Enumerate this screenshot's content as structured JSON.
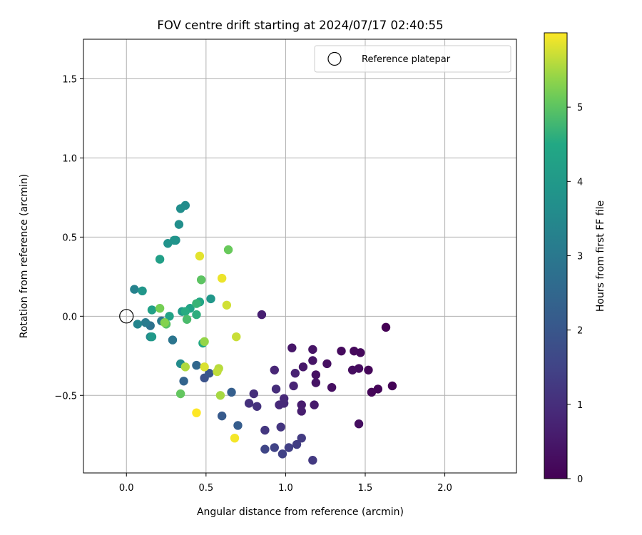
{
  "chart_data": {
    "type": "scatter",
    "title": "FOV centre drift starting at 2024/07/17 02:40:55",
    "xlabel": "Angular distance from reference (arcmin)",
    "ylabel": "Rotation from reference (arcmin)",
    "xlim": [
      -0.27,
      2.45
    ],
    "ylim": [
      -0.99,
      1.75
    ],
    "x_ticks": [
      0.0,
      0.5,
      1.0,
      1.5,
      2.0
    ],
    "x_tick_labels": [
      "0.0",
      "0.5",
      "1.0",
      "1.5",
      "2.0"
    ],
    "y_ticks": [
      -0.5,
      0.0,
      0.5,
      1.0,
      1.5
    ],
    "y_tick_labels": [
      "−0.5",
      "0.0",
      "0.5",
      "1.0",
      "1.5"
    ],
    "grid": true,
    "legend": {
      "placement": "upper right",
      "entries": [
        {
          "label": "Reference platepar",
          "marker": "open-circle",
          "color": "#000000"
        }
      ]
    },
    "reference_point": {
      "x": 0.0,
      "y": 0.0
    },
    "colorbar": {
      "label": "Hours from first FF file",
      "colormap": "viridis",
      "range": [
        0,
        6
      ],
      "ticks": [
        0,
        1,
        2,
        3,
        4,
        5
      ],
      "tick_labels": [
        "0",
        "1",
        "2",
        "3",
        "4",
        "5"
      ]
    },
    "points": [
      {
        "x": 1.63,
        "y": -0.07,
        "t": 0.0
      },
      {
        "x": 1.67,
        "y": -0.44,
        "t": 0.05
      },
      {
        "x": 1.58,
        "y": -0.46,
        "t": 0.08
      },
      {
        "x": 1.54,
        "y": -0.48,
        "t": 0.1
      },
      {
        "x": 1.52,
        "y": -0.34,
        "t": 0.12
      },
      {
        "x": 1.47,
        "y": -0.23,
        "t": 0.15
      },
      {
        "x": 1.43,
        "y": -0.22,
        "t": 0.17
      },
      {
        "x": 1.35,
        "y": -0.22,
        "t": 0.2
      },
      {
        "x": 1.46,
        "y": -0.33,
        "t": 0.22
      },
      {
        "x": 1.42,
        "y": -0.34,
        "t": 0.25
      },
      {
        "x": 1.46,
        "y": -0.68,
        "t": 0.28
      },
      {
        "x": 1.29,
        "y": -0.45,
        "t": 0.3
      },
      {
        "x": 1.26,
        "y": -0.3,
        "t": 0.32
      },
      {
        "x": 1.19,
        "y": -0.37,
        "t": 0.35
      },
      {
        "x": 1.19,
        "y": -0.42,
        "t": 0.38
      },
      {
        "x": 1.17,
        "y": -0.21,
        "t": 0.4
      },
      {
        "x": 1.17,
        "y": -0.28,
        "t": 0.42
      },
      {
        "x": 1.04,
        "y": -0.2,
        "t": 0.45
      },
      {
        "x": 1.11,
        "y": -0.32,
        "t": 0.5
      },
      {
        "x": 1.18,
        "y": -0.56,
        "t": 0.55
      },
      {
        "x": 1.1,
        "y": -0.56,
        "t": 0.58
      },
      {
        "x": 1.1,
        "y": -0.6,
        "t": 0.62
      },
      {
        "x": 0.85,
        "y": 0.01,
        "t": 0.65
      },
      {
        "x": 1.06,
        "y": -0.36,
        "t": 0.7
      },
      {
        "x": 1.05,
        "y": -0.44,
        "t": 0.75
      },
      {
        "x": 0.93,
        "y": -0.34,
        "t": 0.8
      },
      {
        "x": 0.99,
        "y": -0.52,
        "t": 0.85
      },
      {
        "x": 0.99,
        "y": -0.55,
        "t": 0.88
      },
      {
        "x": 0.96,
        "y": -0.56,
        "t": 0.9
      },
      {
        "x": 0.94,
        "y": -0.46,
        "t": 0.95
      },
      {
        "x": 0.8,
        "y": -0.49,
        "t": 1.0
      },
      {
        "x": 0.77,
        "y": -0.55,
        "t": 1.05
      },
      {
        "x": 0.82,
        "y": -0.57,
        "t": 1.1
      },
      {
        "x": 0.97,
        "y": -0.7,
        "t": 1.15
      },
      {
        "x": 0.87,
        "y": -0.72,
        "t": 1.2
      },
      {
        "x": 1.17,
        "y": -0.91,
        "t": 1.25
      },
      {
        "x": 1.1,
        "y": -0.77,
        "t": 1.3
      },
      {
        "x": 1.07,
        "y": -0.81,
        "t": 1.35
      },
      {
        "x": 1.02,
        "y": -0.83,
        "t": 1.4
      },
      {
        "x": 0.98,
        "y": -0.87,
        "t": 1.45
      },
      {
        "x": 0.93,
        "y": -0.83,
        "t": 1.5
      },
      {
        "x": 0.87,
        "y": -0.84,
        "t": 1.55
      },
      {
        "x": 0.49,
        "y": -0.39,
        "t": 1.9
      },
      {
        "x": 0.52,
        "y": -0.36,
        "t": 2.0
      },
      {
        "x": 0.6,
        "y": -0.63,
        "t": 2.1
      },
      {
        "x": 0.7,
        "y": -0.69,
        "t": 2.2
      },
      {
        "x": 0.66,
        "y": -0.48,
        "t": 2.25
      },
      {
        "x": 0.36,
        "y": -0.41,
        "t": 2.4
      },
      {
        "x": 0.44,
        "y": -0.31,
        "t": 2.5
      },
      {
        "x": 0.15,
        "y": -0.06,
        "t": 2.8
      },
      {
        "x": 0.29,
        "y": -0.15,
        "t": 2.9
      },
      {
        "x": 0.22,
        "y": -0.03,
        "t": 3.0
      },
      {
        "x": 0.12,
        "y": -0.04,
        "t": 3.1
      },
      {
        "x": 0.05,
        "y": 0.17,
        "t": 3.3
      },
      {
        "x": 0.07,
        "y": -0.05,
        "t": 3.4
      },
      {
        "x": 0.15,
        "y": -0.13,
        "t": 3.5
      },
      {
        "x": 0.34,
        "y": -0.3,
        "t": 3.6
      },
      {
        "x": 0.37,
        "y": 0.7,
        "t": 3.6
      },
      {
        "x": 0.34,
        "y": 0.68,
        "t": 3.65
      },
      {
        "x": 0.33,
        "y": 0.58,
        "t": 3.7
      },
      {
        "x": 0.31,
        "y": 0.48,
        "t": 3.75
      },
      {
        "x": 0.26,
        "y": 0.46,
        "t": 3.8
      },
      {
        "x": 0.3,
        "y": 0.48,
        "t": 3.85
      },
      {
        "x": 0.1,
        "y": 0.16,
        "t": 3.9
      },
      {
        "x": 0.53,
        "y": 0.11,
        "t": 3.95
      },
      {
        "x": 0.16,
        "y": -0.13,
        "t": 4.0
      },
      {
        "x": 0.35,
        "y": 0.03,
        "t": 4.05
      },
      {
        "x": 0.21,
        "y": 0.36,
        "t": 4.2
      },
      {
        "x": 0.16,
        "y": 0.04,
        "t": 4.25
      },
      {
        "x": 0.27,
        "y": 0.0,
        "t": 4.3
      },
      {
        "x": 0.4,
        "y": 0.05,
        "t": 4.35
      },
      {
        "x": 0.46,
        "y": 0.09,
        "t": 4.4
      },
      {
        "x": 0.48,
        "y": -0.17,
        "t": 4.5
      },
      {
        "x": 0.37,
        "y": 0.03,
        "t": 4.55
      },
      {
        "x": 0.44,
        "y": 0.01,
        "t": 4.6
      },
      {
        "x": 0.44,
        "y": 0.08,
        "t": 4.7
      },
      {
        "x": 0.38,
        "y": -0.02,
        "t": 4.85
      },
      {
        "x": 0.25,
        "y": -0.05,
        "t": 4.95
      },
      {
        "x": 0.47,
        "y": 0.23,
        "t": 5.0
      },
      {
        "x": 0.34,
        "y": -0.49,
        "t": 5.05
      },
      {
        "x": 0.64,
        "y": 0.42,
        "t": 5.1
      },
      {
        "x": 0.21,
        "y": 0.05,
        "t": 5.2
      },
      {
        "x": 0.24,
        "y": -0.04,
        "t": 5.3
      },
      {
        "x": 0.49,
        "y": -0.16,
        "t": 5.4
      },
      {
        "x": 0.59,
        "y": -0.5,
        "t": 5.5
      },
      {
        "x": 0.37,
        "y": -0.32,
        "t": 5.55
      },
      {
        "x": 0.58,
        "y": -0.33,
        "t": 5.6
      },
      {
        "x": 0.57,
        "y": -0.35,
        "t": 5.65
      },
      {
        "x": 0.69,
        "y": -0.13,
        "t": 5.7
      },
      {
        "x": 0.63,
        "y": 0.07,
        "t": 5.75
      },
      {
        "x": 0.49,
        "y": -0.32,
        "t": 5.8
      },
      {
        "x": 0.46,
        "y": 0.38,
        "t": 5.85
      },
      {
        "x": 0.6,
        "y": 0.24,
        "t": 5.9
      },
      {
        "x": 0.68,
        "y": -0.77,
        "t": 5.95
      },
      {
        "x": 0.44,
        "y": -0.61,
        "t": 6.0
      }
    ]
  }
}
